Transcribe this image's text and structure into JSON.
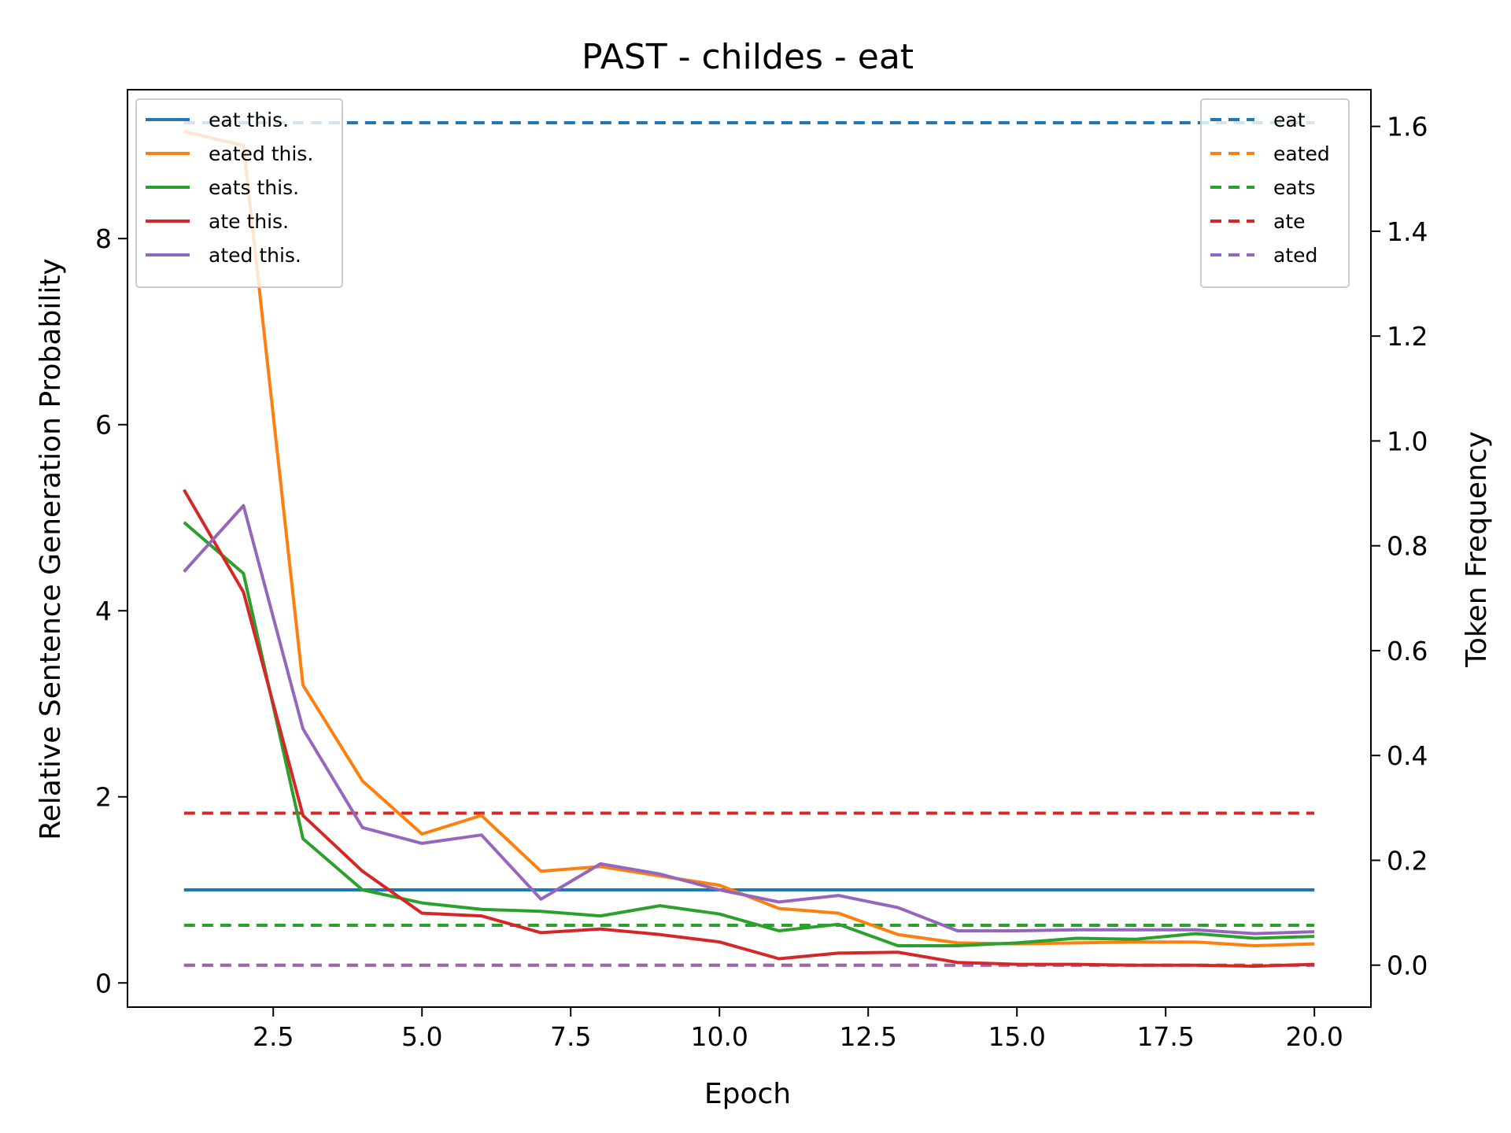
{
  "chart_data": {
    "type": "line",
    "title": "PAST - childes - eat",
    "xlabel": "Epoch",
    "ylabel": "Relative Sentence Generation Probability",
    "y2label": "Token Frequency",
    "xlim": [
      0.05,
      20.95
    ],
    "ylim": [
      -0.26,
      9.6
    ],
    "y2lim": [
      -0.08,
      1.67
    ],
    "xticks": [
      2.5,
      5.0,
      7.5,
      10.0,
      12.5,
      15.0,
      17.5,
      20.0
    ],
    "xtick_labels": [
      "2.5",
      "5.0",
      "7.5",
      "10.0",
      "12.5",
      "15.0",
      "17.5",
      "20.0"
    ],
    "yticks": [
      0,
      2,
      4,
      6,
      8
    ],
    "ytick_labels": [
      "0",
      "2",
      "4",
      "6",
      "8"
    ],
    "y2ticks": [
      0.0,
      0.2,
      0.4,
      0.6,
      0.8,
      1.0,
      1.2,
      1.4,
      1.6
    ],
    "y2tick_labels": [
      "0.0",
      "0.2",
      "0.4",
      "0.6",
      "0.8",
      "1.0",
      "1.2",
      "1.4",
      "1.6"
    ],
    "grid": false,
    "x": [
      1,
      2,
      3,
      4,
      5,
      6,
      7,
      8,
      9,
      10,
      11,
      12,
      13,
      14,
      15,
      16,
      17,
      18,
      19,
      20
    ],
    "series": [
      {
        "name": "eat this.",
        "color": "#1f77b4",
        "axis": "left",
        "style": "solid",
        "values": [
          1,
          1,
          1,
          1,
          1,
          1,
          1,
          1,
          1,
          1,
          1,
          1,
          1,
          1,
          1,
          1,
          1,
          1,
          1,
          1
        ]
      },
      {
        "name": "eated this.",
        "color": "#ff7f0e",
        "axis": "left",
        "style": "solid",
        "values": [
          9.15,
          9.0,
          3.2,
          2.17,
          1.6,
          1.8,
          1.2,
          1.25,
          1.15,
          1.05,
          0.8,
          0.75,
          0.52,
          0.43,
          0.42,
          0.43,
          0.44,
          0.44,
          0.4,
          0.42
        ]
      },
      {
        "name": "eats this.",
        "color": "#2ca02c",
        "axis": "left",
        "style": "solid",
        "values": [
          4.95,
          4.4,
          1.55,
          1.0,
          0.86,
          0.79,
          0.77,
          0.72,
          0.83,
          0.74,
          0.56,
          0.63,
          0.4,
          0.4,
          0.43,
          0.48,
          0.47,
          0.53,
          0.48,
          0.5
        ]
      },
      {
        "name": "ate this.",
        "color": "#d62728",
        "axis": "left",
        "style": "solid",
        "values": [
          5.3,
          4.2,
          1.8,
          1.2,
          0.75,
          0.72,
          0.54,
          0.58,
          0.52,
          0.44,
          0.26,
          0.32,
          0.33,
          0.22,
          0.2,
          0.2,
          0.19,
          0.19,
          0.18,
          0.2
        ]
      },
      {
        "name": "ated this.",
        "color": "#9467bd",
        "axis": "left",
        "style": "solid",
        "values": [
          4.42,
          5.13,
          2.73,
          1.67,
          1.5,
          1.59,
          0.9,
          1.28,
          1.17,
          1.0,
          0.87,
          0.94,
          0.81,
          0.56,
          0.56,
          0.57,
          0.57,
          0.57,
          0.53,
          0.55
        ]
      }
    ],
    "reference_lines": [
      {
        "name": "eat",
        "color": "#1f77b4",
        "axis": "right",
        "style": "dashed",
        "value": 1.607
      },
      {
        "name": "eated",
        "color": "#ff7f0e",
        "axis": "right",
        "style": "dashed",
        "value": 0.0
      },
      {
        "name": "eats",
        "color": "#2ca02c",
        "axis": "right",
        "style": "dashed",
        "value": 0.076
      },
      {
        "name": "ate",
        "color": "#d62728",
        "axis": "right",
        "style": "dashed",
        "value": 0.29
      },
      {
        "name": "ated",
        "color": "#9467bd",
        "axis": "right",
        "style": "dashed",
        "value": 0.0
      }
    ],
    "legend_left_placement": "top-left",
    "legend_right_placement": "top-right"
  }
}
